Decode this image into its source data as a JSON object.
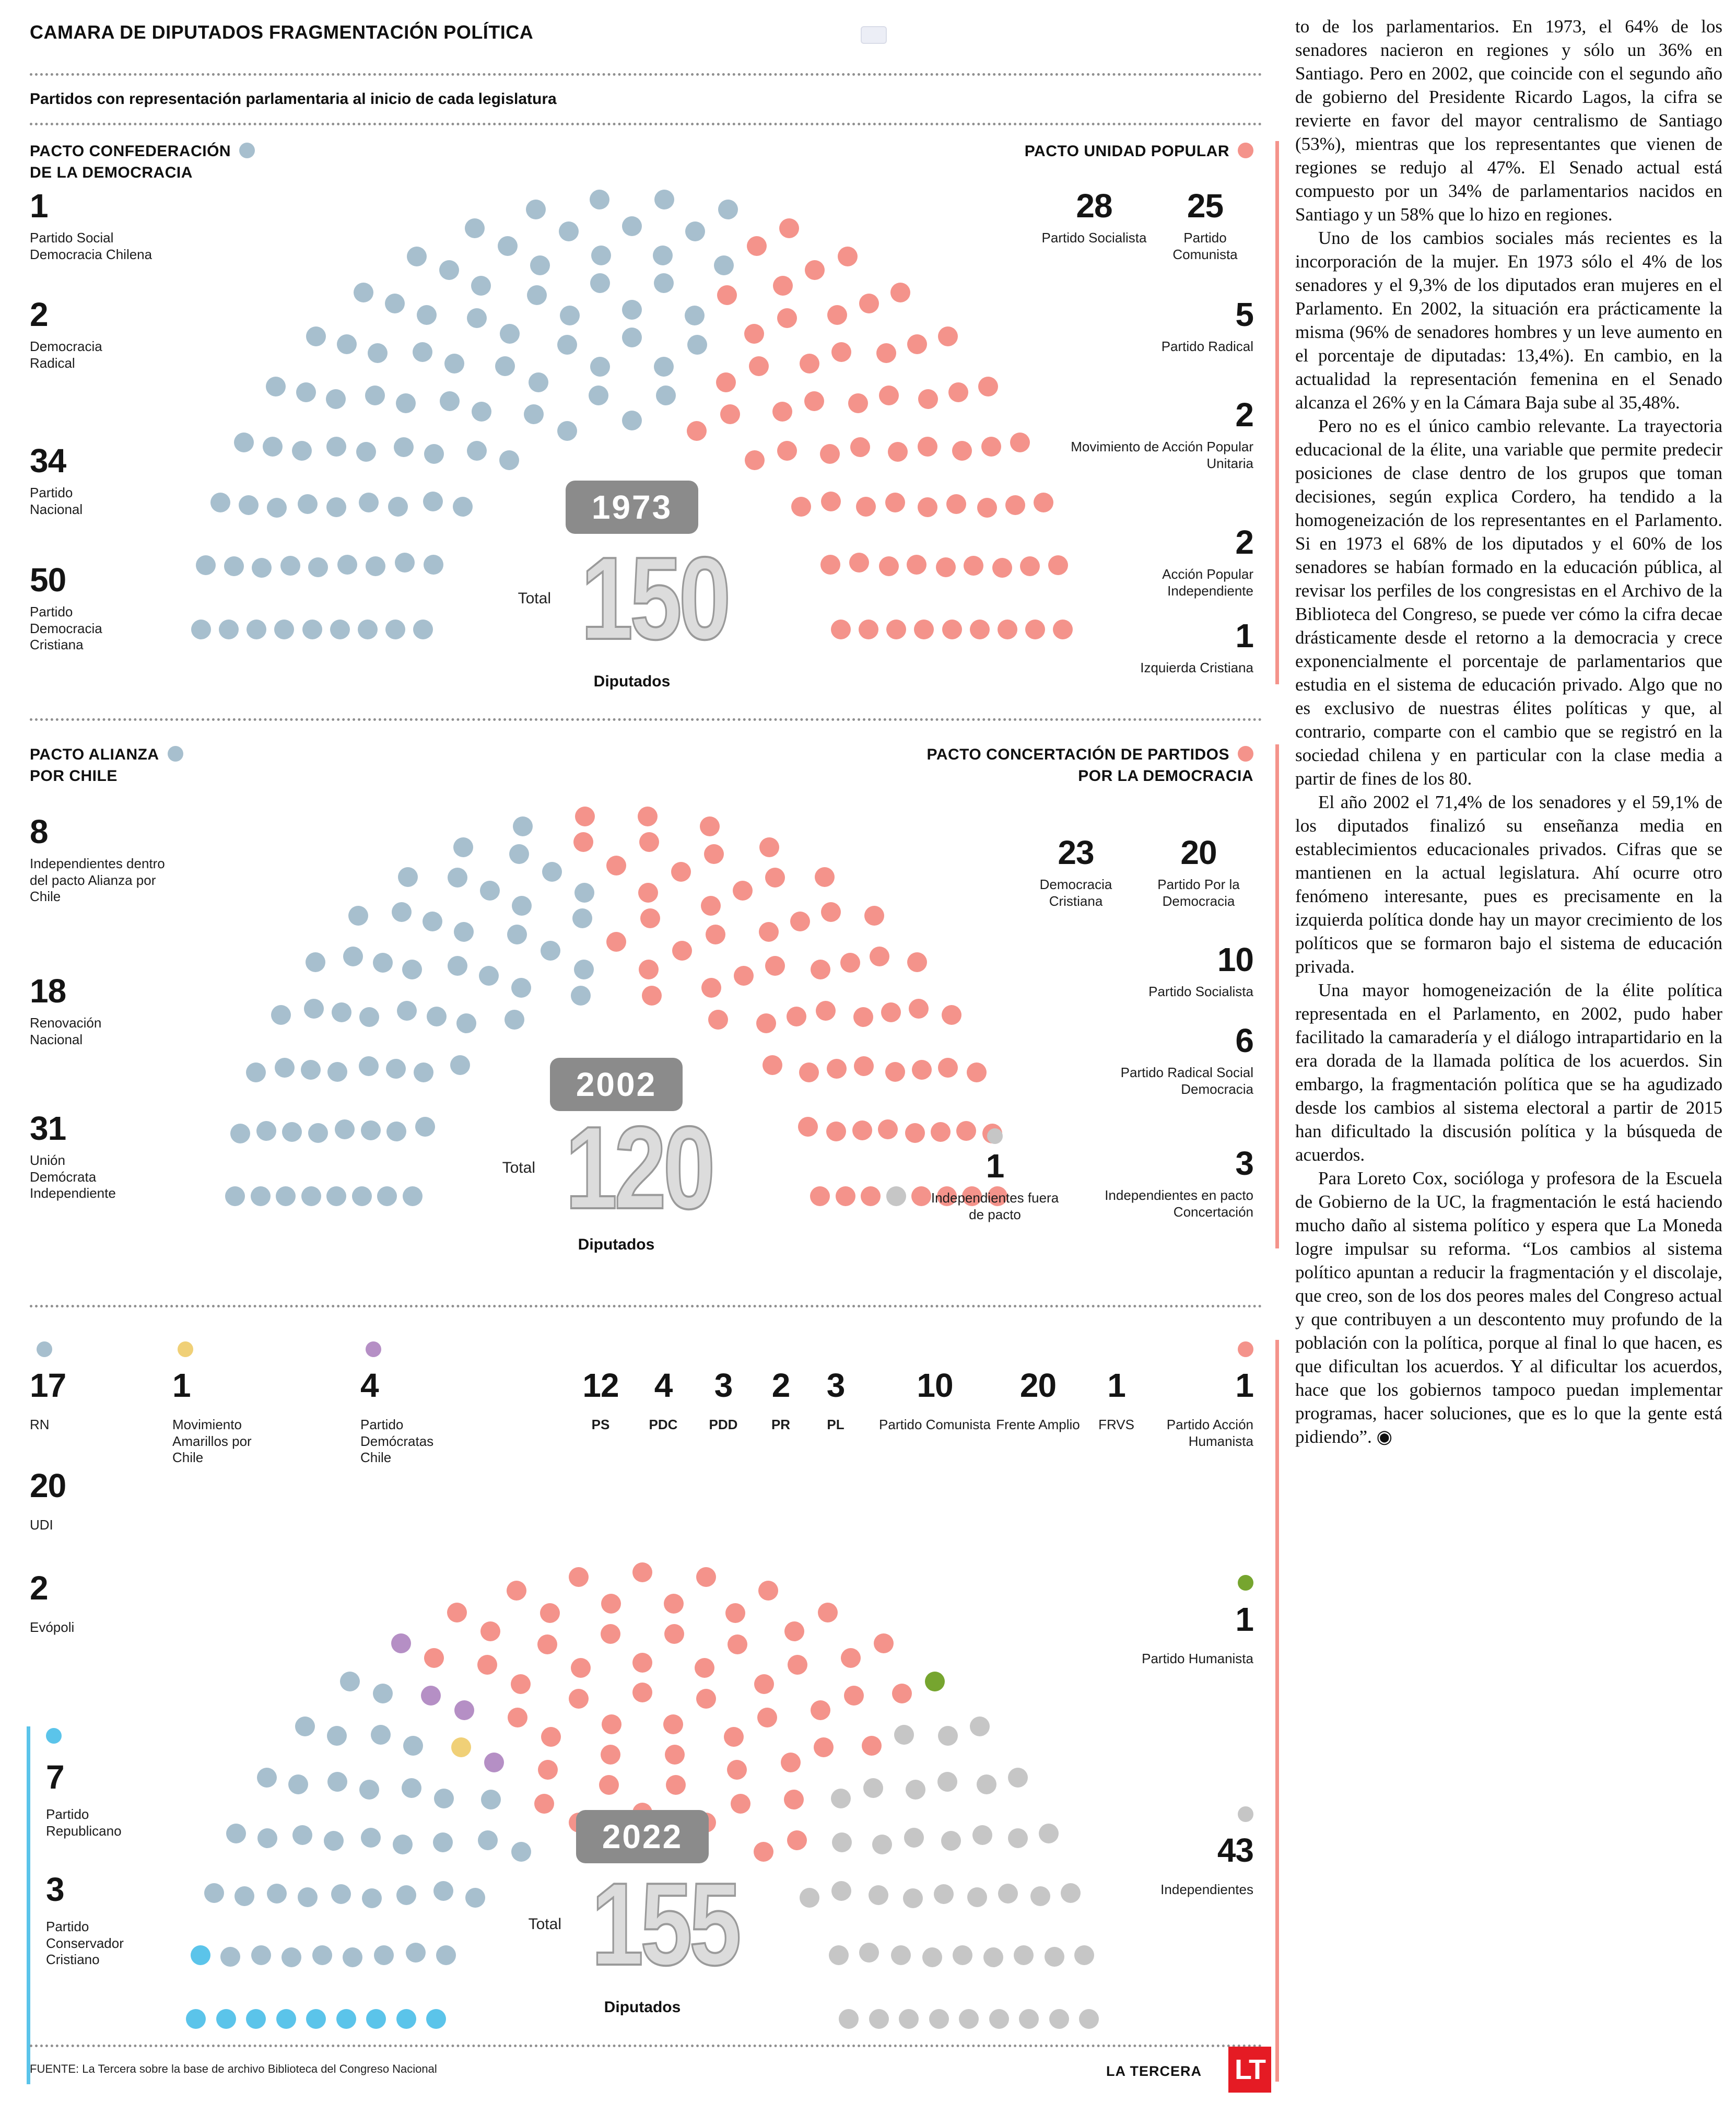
{
  "header": {
    "title": "CAMARA DE DIPUTADOS FRAGMENTACIÓN POLÍTICA",
    "subtitle": "Partidos con representación parlamentaria al inicio de cada legislatura"
  },
  "footer": {
    "source": "FUENTE: La Tercera sobre la base de archivo Biblioteca del Congreso Nacional",
    "brand": "LA TERCERA",
    "logo": "LT"
  },
  "colors": {
    "pact_left_blue": "#a7bfce",
    "pact_right_salmon": "#f4938b",
    "independent_gray": "#c6c6c6",
    "republicano_cyan": "#5bc4ea",
    "amarillos_yellow": "#f0d077",
    "democratas_purple": "#b58fc5",
    "humanista_green": "#76a52f",
    "badge_gray": "#8b8b8b",
    "logo_red": "#e51b24"
  },
  "charts": [
    {
      "year": "1973",
      "total_label": "Total",
      "total": "150",
      "unit": "Diputados",
      "left_pact": {
        "name_line1": "PACTO CONFEDERACIÓN",
        "name_line2": "DE LA DEMOCRACIA",
        "items": [
          {
            "value": "1",
            "label": "Partido Social Democracia Chilena"
          },
          {
            "value": "2",
            "label": "Democracia Radical"
          },
          {
            "value": "34",
            "label": "Partido Nacional"
          },
          {
            "value": "50",
            "label": "Partido Democracia Cristiana"
          }
        ]
      },
      "right_pact": {
        "name_line1": "PACTO UNIDAD POPULAR",
        "items": [
          {
            "value": "28",
            "label": "Partido Socialista"
          },
          {
            "value": "25",
            "label": "Partido Comunista"
          },
          {
            "value": "5",
            "label": "Partido Radical"
          },
          {
            "value": "2",
            "label": "Movimiento de Acción Popular Unitaria"
          },
          {
            "value": "2",
            "label": "Acción Popular Independiente"
          },
          {
            "value": "1",
            "label": "Izquierda Cristiana"
          }
        ]
      }
    },
    {
      "year": "2002",
      "total_label": "Total",
      "total": "120",
      "unit": "Diputados",
      "left_pact": {
        "name_line1": "PACTO ALIANZA",
        "name_line2": "POR CHILE",
        "items": [
          {
            "value": "8",
            "label": "Independientes dentro del pacto Alianza por Chile"
          },
          {
            "value": "18",
            "label": "Renovación Nacional"
          },
          {
            "value": "31",
            "label": "Unión Demócrata Independiente"
          }
        ]
      },
      "right_pact": {
        "name_line1": "PACTO CONCERTACIÓN DE PARTIDOS",
        "name_line2": "POR LA DEMOCRACIA",
        "items": [
          {
            "value": "23",
            "label": "Democracia Cristiana"
          },
          {
            "value": "20",
            "label": "Partido Por la Democracia"
          },
          {
            "value": "10",
            "label": "Partido Socialista"
          },
          {
            "value": "6",
            "label": "Partido Radical Social Democracia"
          },
          {
            "value": "3",
            "label": "Independientes en pacto Concertación"
          }
        ]
      },
      "outside_pact": {
        "value": "1",
        "label": "Independientes fuera de pacto"
      }
    },
    {
      "year": "2022",
      "total_label": "Total",
      "total": "155",
      "unit": "Diputados",
      "left_column": [
        {
          "value": "17",
          "label": "RN"
        },
        {
          "value": "20",
          "label": "UDI"
        },
        {
          "value": "2",
          "label": "Evópoli"
        }
      ],
      "amarillos": {
        "value": "1",
        "label": "Movimiento Amarillos por Chile"
      },
      "democratas": {
        "value": "4",
        "label": "Partido Demócratas Chile"
      },
      "mid_row": [
        {
          "value": "12",
          "label": "PS"
        },
        {
          "value": "4",
          "label": "PDC"
        },
        {
          "value": "3",
          "label": "PDD"
        },
        {
          "value": "2",
          "label": "PR"
        },
        {
          "value": "3",
          "label": "PL"
        }
      ],
      "mid_row2": [
        {
          "value": "10",
          "label": "Partido Comunista"
        },
        {
          "value": "20",
          "label": "Frente Amplio"
        },
        {
          "value": "1",
          "label": "FRVS"
        },
        {
          "value": "1",
          "label": "Partido Acción Humanista"
        }
      ],
      "republicano": {
        "value": "7",
        "label": "Partido Republicano"
      },
      "conservador": {
        "value": "3",
        "label": "Partido Conservador Cristiano"
      },
      "humanista": {
        "value": "1",
        "label": "Partido Humanista"
      },
      "independientes": {
        "value": "43",
        "label": "Independientes"
      }
    }
  ],
  "chart_data": [
    {
      "type": "parliament",
      "title": "1973",
      "total_seats": 150,
      "series": [
        {
          "name": "Pacto Confederación de la Democracia",
          "color": "#a7bfce",
          "seats": 87,
          "parties": [
            {
              "name": "Partido Social Democracia Chilena",
              "seats": 1
            },
            {
              "name": "Democracia Radical",
              "seats": 2
            },
            {
              "name": "Partido Nacional",
              "seats": 34
            },
            {
              "name": "Partido Democracia Cristiana",
              "seats": 50
            }
          ]
        },
        {
          "name": "Pacto Unidad Popular",
          "color": "#f4938b",
          "seats": 63,
          "parties": [
            {
              "name": "Partido Socialista",
              "seats": 28
            },
            {
              "name": "Partido Comunista",
              "seats": 25
            },
            {
              "name": "Partido Radical",
              "seats": 5
            },
            {
              "name": "Movimiento de Acción Popular Unitaria",
              "seats": 2
            },
            {
              "name": "Acción Popular Independiente",
              "seats": 2
            },
            {
              "name": "Izquierda Cristiana",
              "seats": 1
            }
          ]
        }
      ],
      "seat_blocks": [
        {
          "color": "#a7bfce",
          "seats": 87
        },
        {
          "color": "#f4938b",
          "seats": 63
        }
      ]
    },
    {
      "type": "parliament",
      "title": "2002",
      "total_seats": 120,
      "series": [
        {
          "name": "Pacto Alianza por Chile",
          "color": "#a7bfce",
          "seats": 57,
          "parties": [
            {
              "name": "Independientes dentro del pacto Alianza por Chile",
              "seats": 8
            },
            {
              "name": "Renovación Nacional",
              "seats": 18
            },
            {
              "name": "Unión Demócrata Independiente",
              "seats": 31
            }
          ]
        },
        {
          "name": "Pacto Concertación de Partidos por la Democracia",
          "color": "#f4938b",
          "seats": 62,
          "parties": [
            {
              "name": "Democracia Cristiana",
              "seats": 23
            },
            {
              "name": "Partido Por la Democracia",
              "seats": 20
            },
            {
              "name": "Partido Socialista",
              "seats": 10
            },
            {
              "name": "Partido Radical Social Democracia",
              "seats": 6
            },
            {
              "name": "Independientes en pacto Concertación",
              "seats": 3
            }
          ]
        },
        {
          "name": "Independientes fuera de pacto",
          "color": "#c6c6c6",
          "seats": 1
        }
      ],
      "seat_blocks": [
        {
          "color": "#a7bfce",
          "seats": 57
        },
        {
          "color": "#f4938b",
          "seats": 62
        },
        {
          "color": "#c6c6c6",
          "seats": 1
        }
      ]
    },
    {
      "type": "parliament",
      "title": "2022",
      "total_seats": 155,
      "series": [
        {
          "name": "Partido Republicano",
          "color": "#5bc4ea",
          "seats": 7
        },
        {
          "name": "Partido Conservador Cristiano",
          "color": "#5bc4ea",
          "seats": 3
        },
        {
          "name": "RN",
          "color": "#a7bfce",
          "seats": 17
        },
        {
          "name": "UDI",
          "color": "#a7bfce",
          "seats": 20
        },
        {
          "name": "Evópoli",
          "color": "#a7bfce",
          "seats": 2
        },
        {
          "name": "Movimiento Amarillos por Chile",
          "color": "#f0d077",
          "seats": 1
        },
        {
          "name": "Partido Demócratas Chile",
          "color": "#b58fc5",
          "seats": 4
        },
        {
          "name": "PS",
          "color": "#f4938b",
          "seats": 12
        },
        {
          "name": "PDC",
          "color": "#f4938b",
          "seats": 4
        },
        {
          "name": "PDD",
          "color": "#f4938b",
          "seats": 3
        },
        {
          "name": "PR",
          "color": "#f4938b",
          "seats": 2
        },
        {
          "name": "PL",
          "color": "#f4938b",
          "seats": 3
        },
        {
          "name": "Partido Comunista",
          "color": "#f4938b",
          "seats": 10
        },
        {
          "name": "Frente Amplio",
          "color": "#f4938b",
          "seats": 20
        },
        {
          "name": "FRVS",
          "color": "#f4938b",
          "seats": 1
        },
        {
          "name": "Partido Acción Humanista",
          "color": "#f4938b",
          "seats": 1
        },
        {
          "name": "Partido Humanista",
          "color": "#76a52f",
          "seats": 1
        },
        {
          "name": "Independientes",
          "color": "#c6c6c6",
          "seats": 43
        }
      ],
      "seat_blocks": [
        {
          "color": "#5bc4ea",
          "seats": 10
        },
        {
          "color": "#a7bfce",
          "seats": 39
        },
        {
          "color": "#f0d077",
          "seats": 1
        },
        {
          "color": "#b58fc5",
          "seats": 4
        },
        {
          "color": "#f4938b",
          "seats": 56
        },
        {
          "color": "#76a52f",
          "seats": 1
        },
        {
          "color": "#c6c6c6",
          "seats": 43
        }
      ]
    }
  ],
  "article": {
    "paragraphs": [
      "to de los parlamentarios. En 1973, el 64% de los senadores nacieron en regiones y sólo un 36% en Santiago. Pero en 2002, que coincide con el segundo año de gobierno del Presidente Ricardo Lagos, la cifra se revierte en favor del mayor centralismo de Santiago (53%), mientras que los representantes que vienen de regiones se redujo al 47%. El Senado actual está compuesto por un 34% de parlamentarios nacidos en Santiago y un 58% que lo hizo en regiones.",
      "Uno de los cambios sociales más recientes es la incorporación de la mujer. En 1973 sólo el 4% de los senadores y el 9,3% de los diputados eran mujeres en el Parlamento. En 2002, la situación era prácticamente la misma (96% de senadores hombres y un leve aumento en el porcentaje de diputadas: 13,4%). En cambio, en la actualidad la representación femenina en el Senado alcanza el 26% y en la Cámara Baja sube al 35,48%.",
      "Pero no es el único cambio relevante. La trayectoria educacional de la élite, una variable que permite predecir posiciones de clase dentro de los grupos que toman decisiones, según explica Cordero, ha tendido a la homogeneización de los representantes en el Parlamento. Si en 1973 el 68% de los diputados y el 60% de los senadores se habían formado en la educación pública, al revisar los perfiles de los congresistas en el Archivo de la Biblioteca del Congreso, se puede ver cómo la cifra decae drásticamente desde el retorno a la democracia y crece exponencialmente el porcentaje de parlamentarios que estudia en el sistema de educación privado. Algo que no es exclusivo de nuestras élites políticas y que, al contrario, comparte con el cambio que se registró en la sociedad chilena y en particular con la clase media a partir de fines de los 80.",
      "El año 2002 el 71,4% de los senadores y el 59,1% de los diputados finalizó su enseñanza media en establecimientos educacionales privados. Cifras que se mantienen en la actual legislatura. Ahí ocurre otro fenómeno interesante, pues es precisamente en la izquierda política donde hay un mayor crecimiento de los políticos que se formaron bajo el sistema de educación privada.",
      "Una mayor homogeneización de la élite política representada en el Parlamento, en 2002, pudo haber facilitado la camaradería y el diálogo intrapartidario en la era dorada de la llamada política de los acuerdos. Sin embargo, la fragmentación política que se ha agudizado desde los cambios al sistema electoral a partir de 2015 han dificultado la discusión política y la búsqueda de acuerdos.",
      "Para Loreto Cox, socióloga y profesora de la Escuela de Gobierno de la UC, la fragmentación le está haciendo mucho daño al sistema político y espera que La Moneda logre impulsar su reforma. “Los cambios al sistema político apuntan a reducir la fragmentación y el discolaje, que creo, son de los dos peores males del Congreso actual y que contribuyen a un descontento muy profundo de la población con la política, porque al final lo que hacen, es que dificultan los acuerdos. Y al dificultar los acuerdos, hace que los gobiernos tampoco puedan implementar programas, hacer soluciones, que es lo que la gente está pidiendo”. ◉"
    ]
  }
}
